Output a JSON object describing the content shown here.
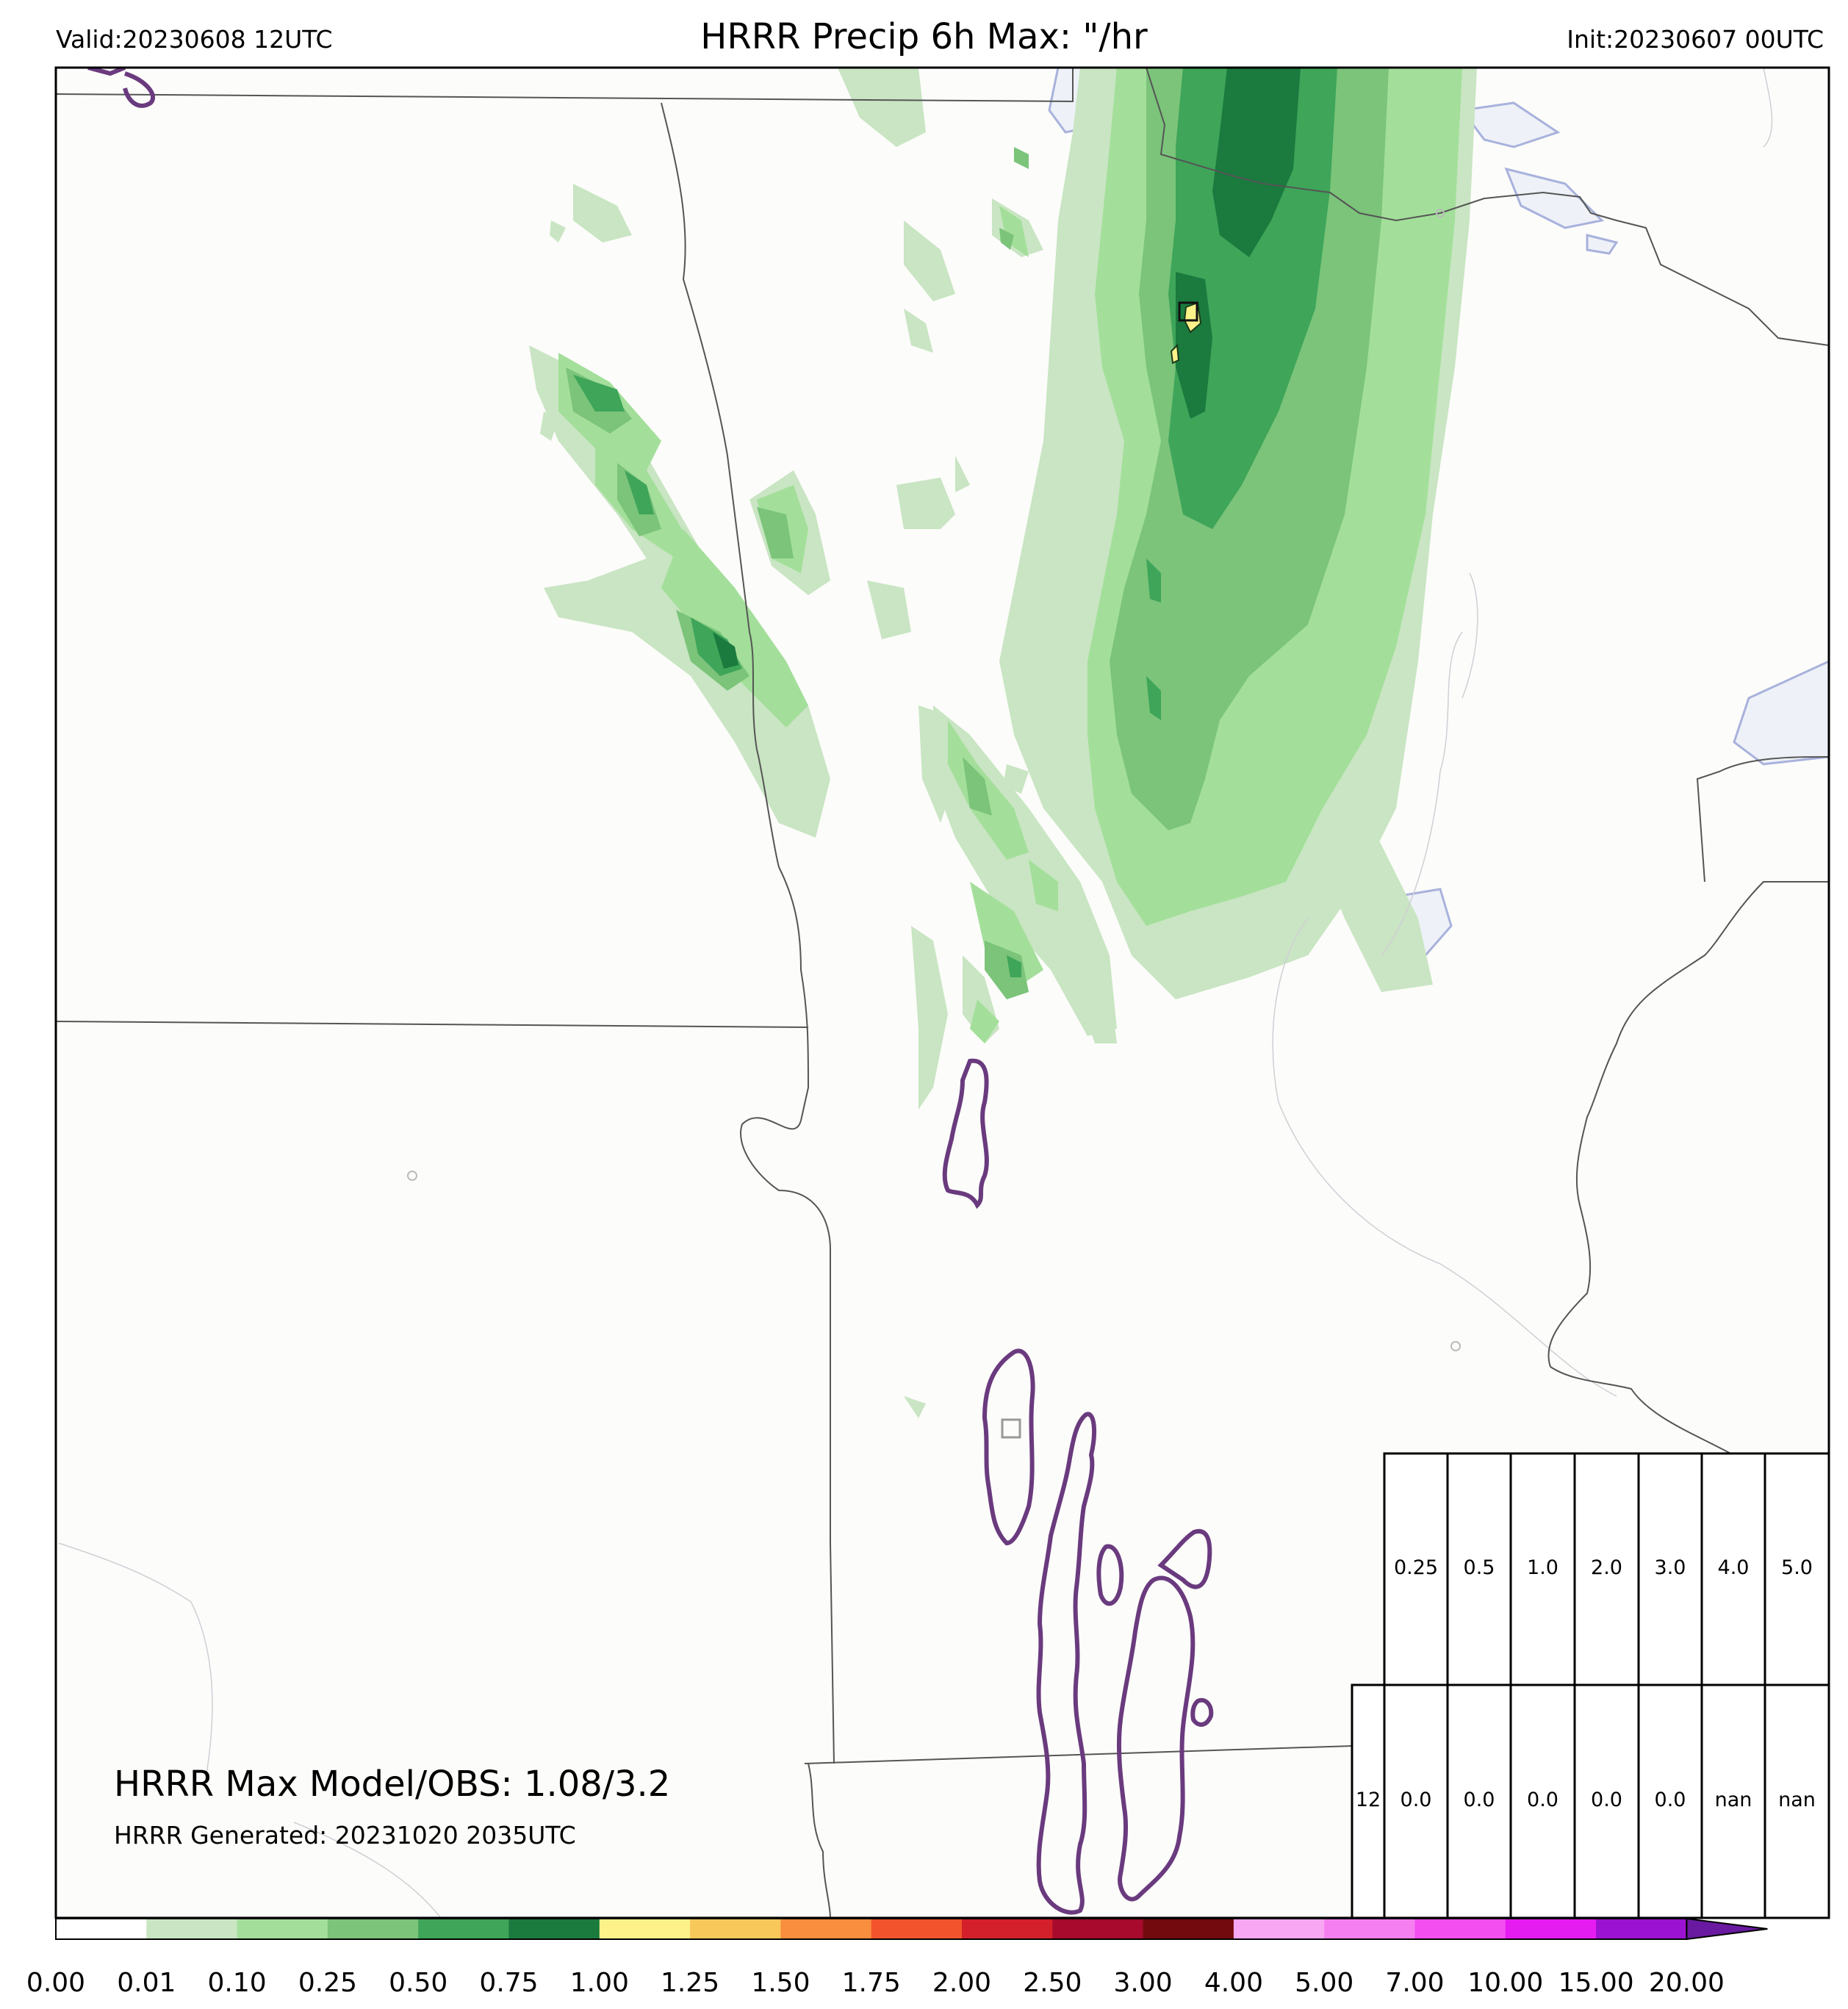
{
  "header": {
    "valid": "Valid:20230608 12UTC",
    "title": "HRRR Precip 6h Max: \"/hr",
    "init": "Init:20230607 00UTC"
  },
  "annotations": {
    "max_model_obs": "HRRR Max Model/OBS: 1.08/3.2",
    "generated": "HRRR Generated: 20231020 2035UTC"
  },
  "threshold_table": {
    "header_values": [
      "0.25",
      "0.5",
      "1.0",
      "2.0",
      "3.0",
      "4.0",
      "5.0"
    ],
    "row_label": "12",
    "row_values": [
      "0.0",
      "0.0",
      "0.0",
      "0.0",
      "0.0",
      "nan",
      "nan"
    ]
  },
  "colorbar": {
    "labels": [
      "0.00",
      "0.01",
      "0.10",
      "0.25",
      "0.50",
      "0.75",
      "1.00",
      "1.25",
      "1.50",
      "1.75",
      "2.00",
      "2.50",
      "3.00",
      "4.00",
      "5.00",
      "7.00",
      "10.00",
      "15.00",
      "20.00"
    ],
    "colors": [
      "#ffffff",
      "#c9e5c3",
      "#a3df9a",
      "#7bc47a",
      "#3ea559",
      "#1b7a3e",
      "#fdf28a",
      "#f9c85a",
      "#f98e3e",
      "#f2532c",
      "#d4202a",
      "#a70a2d",
      "#730a0d",
      "#f8a8f2",
      "#f57ff0",
      "#f24ef0",
      "#e51cf0",
      "#9b12d2",
      "#6a1aa0"
    ]
  },
  "map_colors": {
    "background": "#fcfcfa",
    "state_lines": "#555555",
    "water_fill": "#eef1f7",
    "water_edge": "#a8b2dc",
    "obs_contour": "#6a3a7e"
  }
}
